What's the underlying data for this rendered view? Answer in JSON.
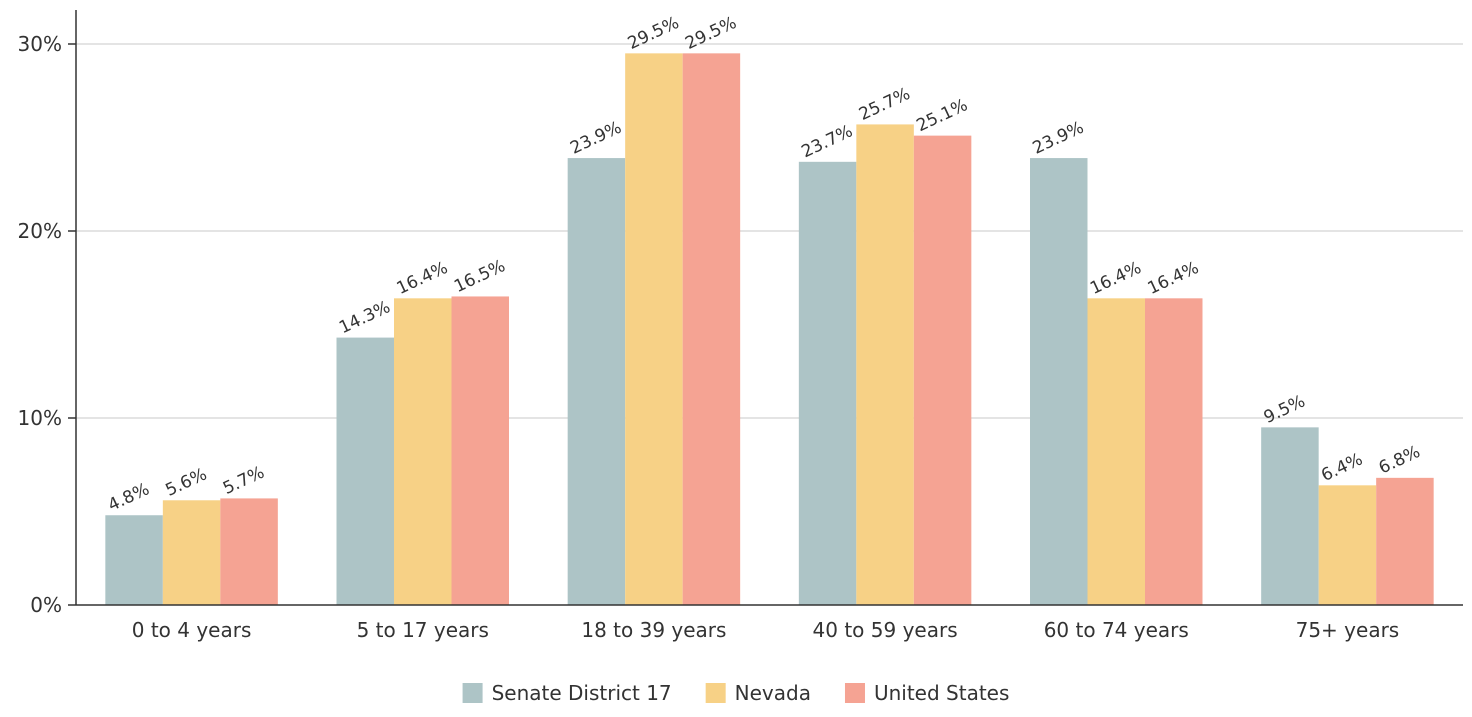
{
  "chart_data": {
    "type": "bar",
    "categories": [
      "0 to 4 years",
      "5 to 17 years",
      "18 to 39 years",
      "40 to 59 years",
      "60 to 74 years",
      "75+ years"
    ],
    "series": [
      {
        "name": "Senate District 17",
        "color": "#adc4c6",
        "values": [
          4.8,
          14.3,
          23.9,
          23.7,
          23.9,
          9.5
        ],
        "labels": [
          "4.8%",
          "14.3%",
          "23.9%",
          "23.7%",
          "23.9%",
          "9.5%"
        ]
      },
      {
        "name": "Nevada",
        "color": "#f7d186",
        "values": [
          5.6,
          16.4,
          29.5,
          25.7,
          16.4,
          6.4
        ],
        "labels": [
          "5.6%",
          "16.4%",
          "29.5%",
          "25.7%",
          "16.4%",
          "6.4%"
        ]
      },
      {
        "name": "United States",
        "color": "#f5a393",
        "values": [
          5.7,
          16.5,
          29.5,
          25.1,
          16.4,
          6.8
        ],
        "labels": [
          "5.7%",
          "16.5%",
          "29.5%",
          "25.1%",
          "16.4%",
          "6.8%"
        ]
      }
    ],
    "y_ticks": [
      {
        "value": 0,
        "label": "0%"
      },
      {
        "value": 10,
        "label": "10%"
      },
      {
        "value": 20,
        "label": "20%"
      },
      {
        "value": 30,
        "label": "30%"
      }
    ],
    "ylim": [
      0,
      32
    ],
    "grid": true,
    "legend": "bottom-center",
    "title": "",
    "xlabel": "",
    "ylabel": ""
  }
}
